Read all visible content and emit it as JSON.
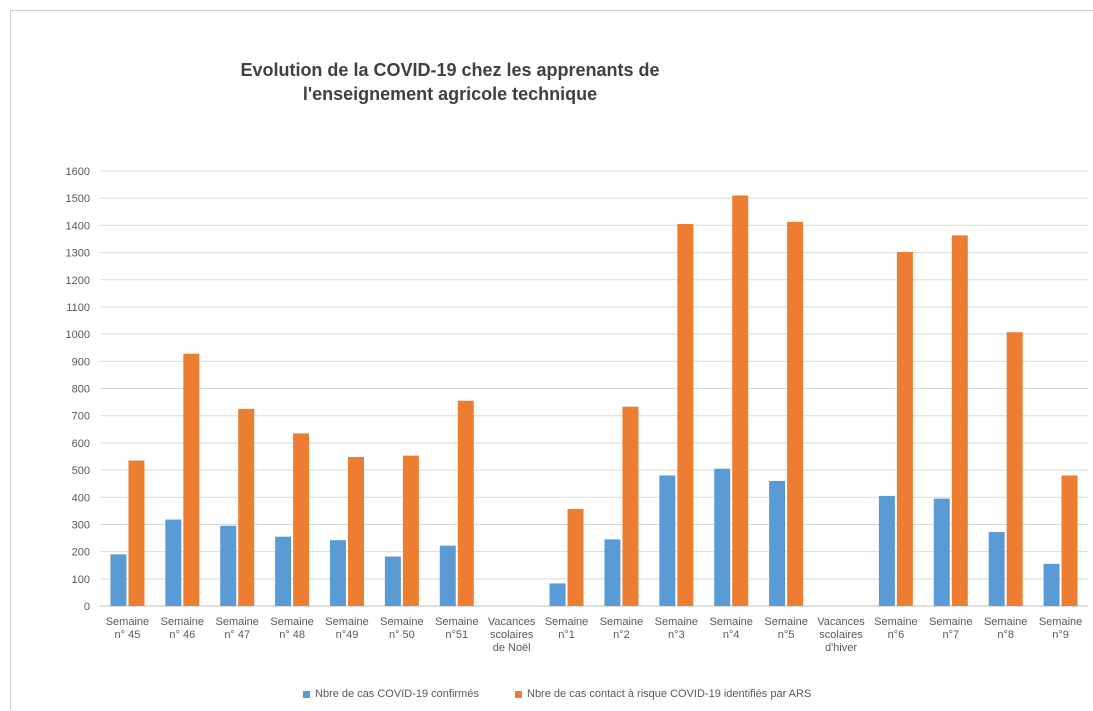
{
  "chart_data": {
    "type": "bar",
    "title_line1": "Evolution de la COVID-19 chez les apprenants de",
    "title_line2": "l'enseignement agricole technique",
    "ylim": [
      0,
      1600
    ],
    "yticks": [
      0,
      100,
      200,
      300,
      400,
      500,
      600,
      700,
      800,
      900,
      1000,
      1100,
      1200,
      1300,
      1400,
      1500,
      1600
    ],
    "grid": true,
    "legend_position": "bottom",
    "categories": [
      [
        "Semaine",
        "n° 45"
      ],
      [
        "Semaine",
        "n° 46"
      ],
      [
        "Semaine",
        "n° 47"
      ],
      [
        "Semaine",
        "n° 48"
      ],
      [
        "Semaine",
        "n°49"
      ],
      [
        "Semaine",
        "n° 50"
      ],
      [
        "Semaine",
        "n°51"
      ],
      [
        "Vacances",
        "scolaires",
        "de Noël"
      ],
      [
        "Semaine",
        "n°1"
      ],
      [
        "Semaine",
        "n°2"
      ],
      [
        "Semaine",
        "n°3"
      ],
      [
        "Semaine",
        "n°4"
      ],
      [
        "Semaine",
        "n°5"
      ],
      [
        "Vacances",
        "scolaires",
        "d'hiver"
      ],
      [
        "Semaine",
        "n°6"
      ],
      [
        "Semaine",
        "n°7"
      ],
      [
        "Semaine",
        "n°8"
      ],
      [
        "Semaine",
        "n°9"
      ]
    ],
    "series": [
      {
        "name": "Nbre de cas COVID-19 confirmés",
        "color": "#5b9bd5",
        "values": [
          190,
          318,
          295,
          255,
          242,
          182,
          222,
          null,
          83,
          245,
          480,
          505,
          460,
          null,
          405,
          395,
          272,
          155
        ]
      },
      {
        "name": "Nbre de cas contact à risque COVID-19 identifiés par ARS",
        "color": "#ed7d31",
        "values": [
          535,
          928,
          725,
          635,
          548,
          553,
          755,
          null,
          357,
          733,
          1405,
          1510,
          1413,
          null,
          1302,
          1363,
          1007,
          480
        ]
      }
    ]
  }
}
